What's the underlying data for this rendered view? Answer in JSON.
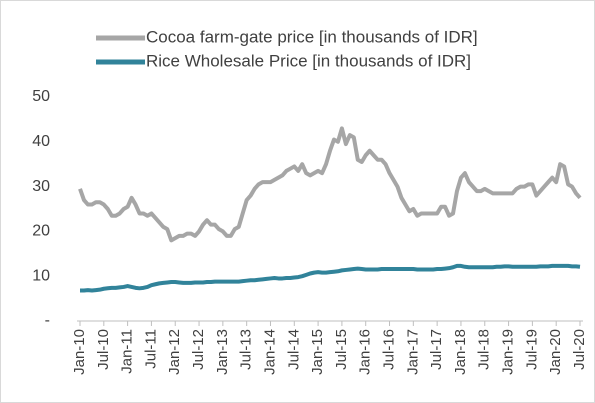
{
  "chart_data": {
    "type": "line",
    "categories": [
      "Jan-10",
      null,
      null,
      null,
      null,
      null,
      "Jul-10",
      null,
      null,
      null,
      null,
      null,
      "Jan-11",
      null,
      null,
      null,
      null,
      null,
      "Jul-11",
      null,
      null,
      null,
      null,
      null,
      "Jan-12",
      null,
      null,
      null,
      null,
      null,
      "Jul-12",
      null,
      null,
      null,
      null,
      null,
      "Jan-13",
      null,
      null,
      null,
      null,
      null,
      "Jul-13",
      null,
      null,
      null,
      null,
      null,
      "Jan-14",
      null,
      null,
      null,
      null,
      null,
      "Jul-14",
      null,
      null,
      null,
      null,
      null,
      "Jan-15",
      null,
      null,
      null,
      null,
      null,
      "Jul-15",
      null,
      null,
      null,
      null,
      null,
      "Jan-16",
      null,
      null,
      null,
      null,
      null,
      "Jul-16",
      null,
      null,
      null,
      null,
      null,
      "Jan-17",
      null,
      null,
      null,
      null,
      null,
      "Jul-17",
      null,
      null,
      null,
      null,
      null,
      "Jan-18",
      null,
      null,
      null,
      null,
      null,
      "Jul-18",
      null,
      null,
      null,
      null,
      null,
      "Jan-19",
      null,
      null,
      null,
      null,
      null,
      "Jul-19",
      null,
      null,
      null,
      null,
      null,
      "Jan-20",
      null,
      null,
      null,
      null,
      null,
      "Jul-20"
    ],
    "series": [
      {
        "name": "Cocoa farm-gate price [in thousands of IDR]",
        "color": "#a6a6a6",
        "values": [
          29.5,
          27,
          26,
          26,
          26.5,
          26.5,
          26,
          25,
          23.5,
          23.5,
          24,
          25,
          25.5,
          27.5,
          26,
          24,
          24,
          23.5,
          24,
          23,
          22,
          21,
          20.5,
          18,
          18.5,
          19,
          19,
          19.5,
          19.5,
          19,
          20,
          21.5,
          22.5,
          21.5,
          21.5,
          20.5,
          20,
          19,
          19,
          20.5,
          21,
          24,
          27,
          28,
          29.5,
          30.5,
          31,
          31,
          31,
          31.5,
          32,
          32.5,
          33.5,
          34,
          34.5,
          33.5,
          35,
          33,
          32.5,
          33,
          33.5,
          33,
          35,
          38,
          40.5,
          40,
          43,
          39.5,
          41.5,
          41,
          36,
          35.5,
          37,
          38,
          37,
          36,
          36,
          35,
          33,
          31.5,
          30,
          27.5,
          26,
          24.5,
          25,
          23.5,
          24,
          24,
          24,
          24,
          24,
          25.5,
          25.5,
          23.5,
          24,
          29,
          32,
          33,
          31,
          30,
          29,
          29,
          29.5,
          29,
          28.5,
          28.5,
          28.5,
          28.5,
          28.5,
          28.5,
          29.5,
          30,
          30,
          30.5,
          30.5,
          28,
          29,
          30,
          31,
          32,
          31,
          35,
          34.5,
          30.5,
          30,
          28.5,
          27.5
        ]
      },
      {
        "name": "Rice Wholesale Price [in thousands of IDR]",
        "color": "#31839a",
        "values": [
          6.8,
          6.8,
          6.9,
          6.8,
          6.9,
          7,
          7.2,
          7.3,
          7.4,
          7.4,
          7.5,
          7.6,
          7.8,
          7.6,
          7.4,
          7.3,
          7.4,
          7.6,
          8,
          8.2,
          8.4,
          8.5,
          8.6,
          8.7,
          8.7,
          8.6,
          8.5,
          8.5,
          8.5,
          8.6,
          8.6,
          8.6,
          8.7,
          8.7,
          8.8,
          8.8,
          8.8,
          8.8,
          8.8,
          8.8,
          8.8,
          8.9,
          9,
          9.1,
          9.1,
          9.2,
          9.3,
          9.4,
          9.5,
          9.6,
          9.5,
          9.5,
          9.6,
          9.6,
          9.7,
          9.8,
          10,
          10.3,
          10.6,
          10.8,
          10.9,
          10.8,
          10.8,
          10.9,
          11,
          11.1,
          11.3,
          11.4,
          11.5,
          11.6,
          11.7,
          11.6,
          11.5,
          11.5,
          11.5,
          11.5,
          11.6,
          11.6,
          11.6,
          11.6,
          11.6,
          11.6,
          11.6,
          11.6,
          11.6,
          11.5,
          11.5,
          11.5,
          11.5,
          11.5,
          11.6,
          11.6,
          11.7,
          11.8,
          12,
          12.3,
          12.3,
          12.1,
          12,
          12,
          12,
          12,
          12,
          12,
          12,
          12.1,
          12.1,
          12.2,
          12.2,
          12.1,
          12.1,
          12.1,
          12.1,
          12.1,
          12.1,
          12.1,
          12.2,
          12.2,
          12.2,
          12.3,
          12.3,
          12.3,
          12.3,
          12.3,
          12.2,
          12.2,
          12.1
        ]
      }
    ],
    "ylim": [
      0,
      50
    ],
    "yticks": [
      {
        "value": 0,
        "label": "-"
      },
      10,
      20,
      30,
      40,
      50
    ],
    "legend": "top"
  }
}
